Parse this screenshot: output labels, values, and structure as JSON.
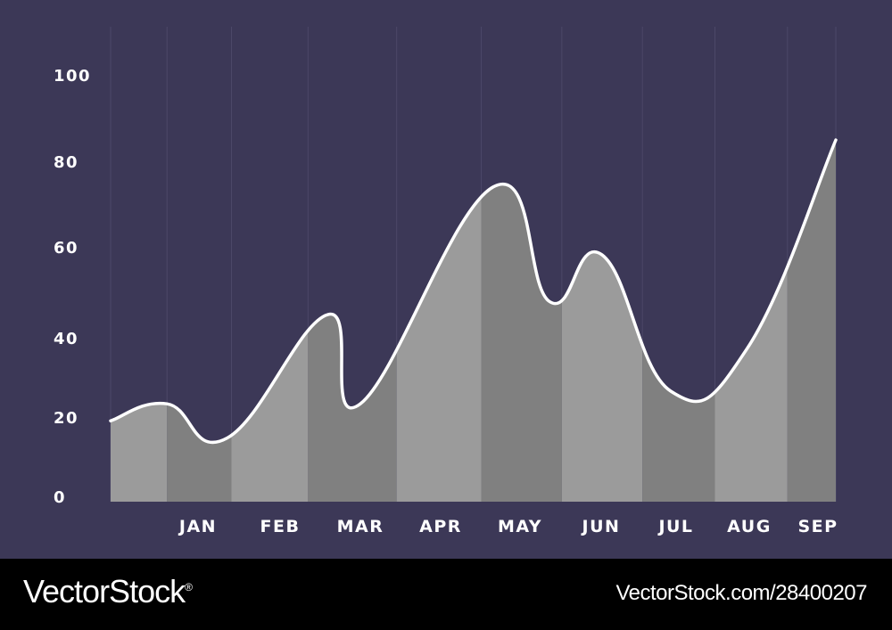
{
  "chart_data": {
    "type": "area",
    "categories": [
      "",
      "JAN",
      "FEB",
      "MAR",
      "APR",
      "MAY",
      "JUN",
      "JUL",
      "AUG",
      "SEP"
    ],
    "y_ticks": [
      "0",
      "20",
      "40",
      "60",
      "80",
      "100"
    ],
    "ylim": [
      0,
      110
    ],
    "grid": "vertical",
    "curve_points": [
      {
        "x": 0.0,
        "y": 19
      },
      {
        "x": 0.7,
        "y": 23
      },
      {
        "x": 1.45,
        "y": 15
      },
      {
        "x": 2.7,
        "y": 44
      },
      {
        "x": 3.1,
        "y": 23
      },
      {
        "x": 4.75,
        "y": 74
      },
      {
        "x": 5.45,
        "y": 47
      },
      {
        "x": 6.1,
        "y": 58
      },
      {
        "x": 6.95,
        "y": 26
      },
      {
        "x": 7.9,
        "y": 36
      },
      {
        "x": 9.0,
        "y": 85
      }
    ],
    "band_edges": [
      0,
      0.7,
      1.5,
      2.45,
      3.55,
      4.6,
      5.6,
      6.6,
      7.5,
      8.4,
      9.0
    ],
    "colors": {
      "background": "#3c3857",
      "fill_light": "#9b9b9b",
      "fill_dark": "#808080",
      "line": "#ffffff",
      "grid": "#4c4868"
    }
  },
  "watermark": {
    "brand": "VectorStock",
    "brand_mark": "®",
    "url": "VectorStock.com/28400207"
  }
}
